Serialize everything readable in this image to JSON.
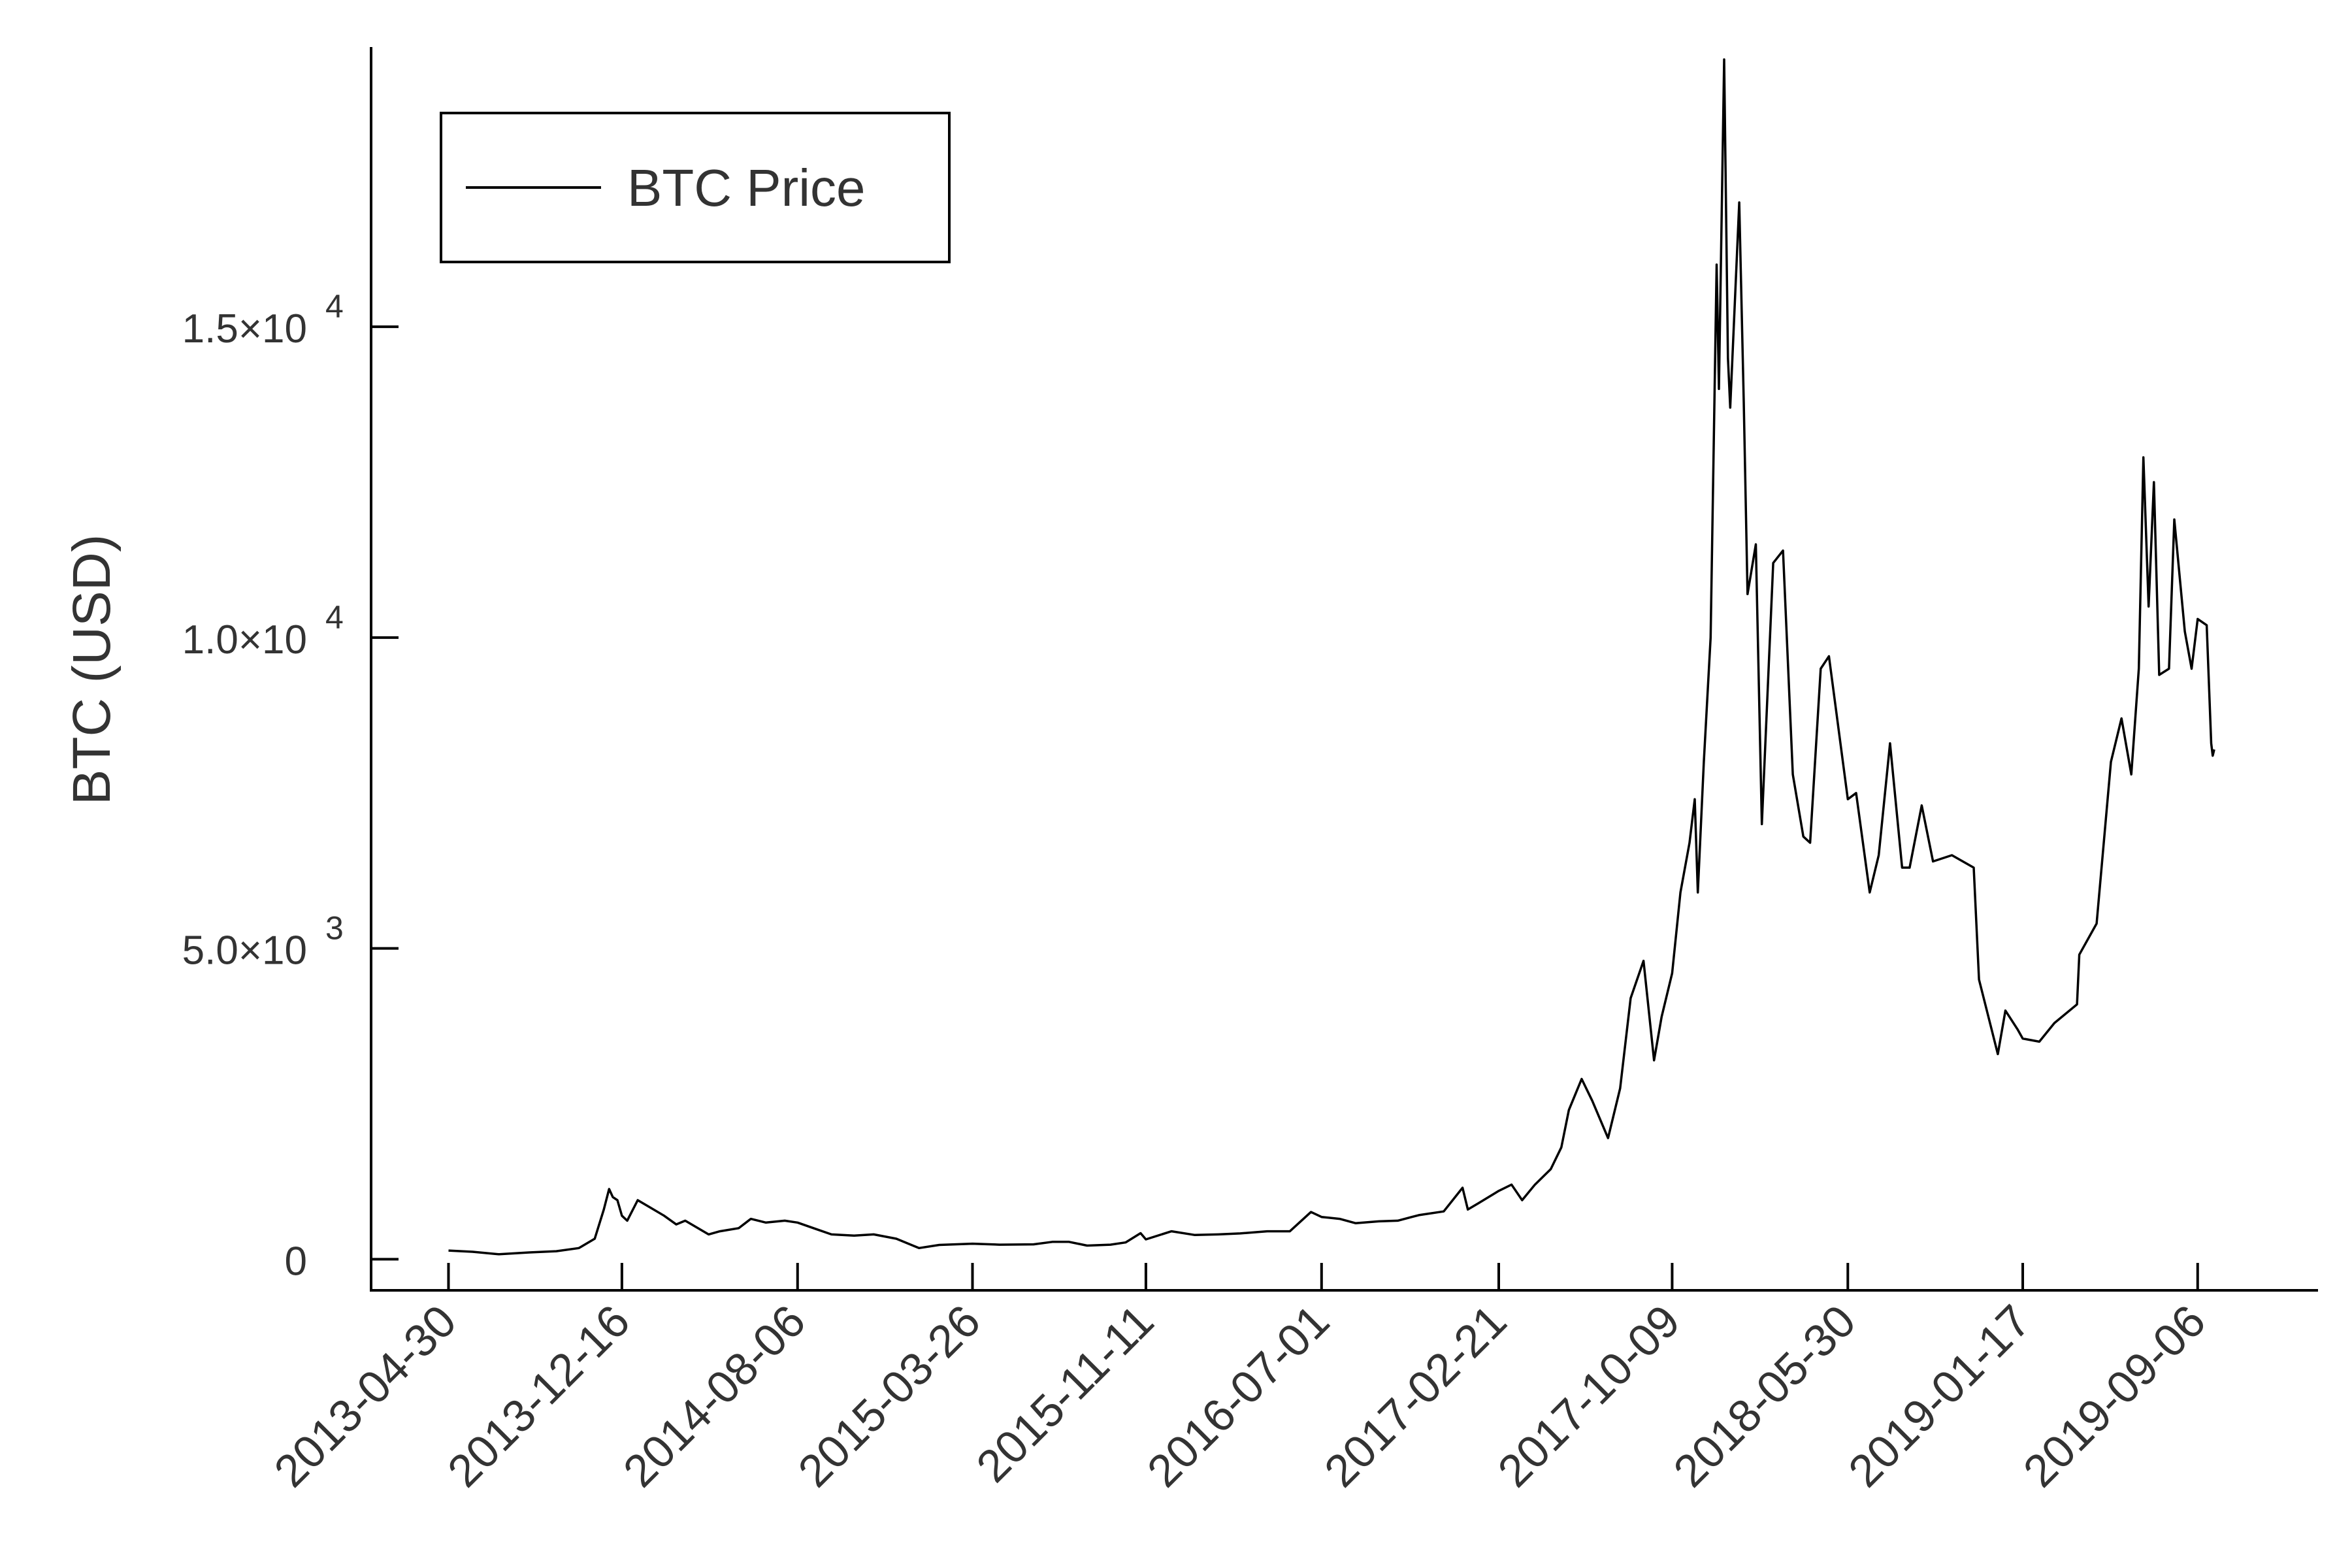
{
  "chart_data": {
    "type": "line",
    "ylabel": "BTC (USD)",
    "xlabel": "",
    "title": "",
    "grid": false,
    "legend_position": "top-left",
    "xlim": [
      "2013-04-01",
      "2019-11-18"
    ],
    "ylim": [
      -500,
      19500
    ],
    "x_ticks": [
      "2013-04-30",
      "2013-12-16",
      "2014-08-06",
      "2015-03-26",
      "2015-11-11",
      "2016-07-01",
      "2017-02-21",
      "2017-10-09",
      "2018-05-30",
      "2019-01-17",
      "2019-09-06"
    ],
    "y_ticks": [
      {
        "value": 0,
        "mantissa": "0",
        "exponent": ""
      },
      {
        "value": 5000,
        "mantissa": "5.0×10",
        "exponent": "3"
      },
      {
        "value": 10000,
        "mantissa": "1.0×10",
        "exponent": "4"
      },
      {
        "value": 15000,
        "mantissa": "1.5×10",
        "exponent": "4"
      }
    ],
    "series": [
      {
        "name": "BTC Price",
        "color": "#000000",
        "points": [
          [
            "2013-04-30",
            140
          ],
          [
            "2013-06-01",
            120
          ],
          [
            "2013-07-06",
            80
          ],
          [
            "2013-08-15",
            110
          ],
          [
            "2013-09-20",
            130
          ],
          [
            "2013-10-20",
            180
          ],
          [
            "2013-11-10",
            330
          ],
          [
            "2013-11-22",
            800
          ],
          [
            "2013-11-29",
            1130
          ],
          [
            "2013-12-04",
            1000
          ],
          [
            "2013-12-10",
            950
          ],
          [
            "2013-12-16",
            700
          ],
          [
            "2013-12-23",
            620
          ],
          [
            "2014-01-06",
            950
          ],
          [
            "2014-01-20",
            850
          ],
          [
            "2014-02-10",
            700
          ],
          [
            "2014-02-26",
            560
          ],
          [
            "2014-03-10",
            620
          ],
          [
            "2014-04-10",
            400
          ],
          [
            "2014-04-25",
            450
          ],
          [
            "2014-05-20",
            500
          ],
          [
            "2014-06-05",
            650
          ],
          [
            "2014-06-25",
            590
          ],
          [
            "2014-07-20",
            620
          ],
          [
            "2014-08-06",
            590
          ],
          [
            "2014-09-01",
            480
          ],
          [
            "2014-09-20",
            400
          ],
          [
            "2014-10-20",
            380
          ],
          [
            "2014-11-15",
            400
          ],
          [
            "2014-12-15",
            330
          ],
          [
            "2015-01-14",
            180
          ],
          [
            "2015-02-10",
            230
          ],
          [
            "2015-03-26",
            250
          ],
          [
            "2015-05-01",
            235
          ],
          [
            "2015-06-15",
            240
          ],
          [
            "2015-07-10",
            280
          ],
          [
            "2015-08-01",
            280
          ],
          [
            "2015-08-25",
            220
          ],
          [
            "2015-09-25",
            235
          ],
          [
            "2015-10-15",
            270
          ],
          [
            "2015-11-04",
            420
          ],
          [
            "2015-11-11",
            320
          ],
          [
            "2015-12-15",
            450
          ],
          [
            "2016-01-15",
            390
          ],
          [
            "2016-02-15",
            400
          ],
          [
            "2016-03-15",
            415
          ],
          [
            "2016-04-20",
            450
          ],
          [
            "2016-05-20",
            450
          ],
          [
            "2016-06-17",
            760
          ],
          [
            "2016-07-01",
            680
          ],
          [
            "2016-07-25",
            650
          ],
          [
            "2016-08-15",
            580
          ],
          [
            "2016-09-15",
            610
          ],
          [
            "2016-10-10",
            620
          ],
          [
            "2016-11-07",
            710
          ],
          [
            "2016-12-10",
            770
          ],
          [
            "2017-01-04",
            1150
          ],
          [
            "2017-01-11",
            800
          ],
          [
            "2017-01-25",
            900
          ],
          [
            "2017-02-21",
            1100
          ],
          [
            "2017-03-10",
            1200
          ],
          [
            "2017-03-24",
            950
          ],
          [
            "2017-04-10",
            1200
          ],
          [
            "2017-05-01",
            1450
          ],
          [
            "2017-05-15",
            1800
          ],
          [
            "2017-05-25",
            2400
          ],
          [
            "2017-06-11",
            2900
          ],
          [
            "2017-06-25",
            2550
          ],
          [
            "2017-07-16",
            1950
          ],
          [
            "2017-08-01",
            2750
          ],
          [
            "2017-08-15",
            4200
          ],
          [
            "2017-09-01",
            4800
          ],
          [
            "2017-09-15",
            3200
          ],
          [
            "2017-09-25",
            3900
          ],
          [
            "2017-10-09",
            4600
          ],
          [
            "2017-10-20",
            5900
          ],
          [
            "2017-11-01",
            6700
          ],
          [
            "2017-11-08",
            7400
          ],
          [
            "2017-11-12",
            5900
          ],
          [
            "2017-11-20",
            8000
          ],
          [
            "2017-11-29",
            10000
          ],
          [
            "2017-12-07",
            16000
          ],
          [
            "2017-12-10",
            14000
          ],
          [
            "2017-12-17",
            19300
          ],
          [
            "2017-12-22",
            14500
          ],
          [
            "2017-12-25",
            13700
          ],
          [
            "2018-01-06",
            17000
          ],
          [
            "2018-01-12",
            13800
          ],
          [
            "2018-01-17",
            10700
          ],
          [
            "2018-01-28",
            11500
          ],
          [
            "2018-02-05",
            7000
          ],
          [
            "2018-02-20",
            11200
          ],
          [
            "2018-03-05",
            11400
          ],
          [
            "2018-03-18",
            7800
          ],
          [
            "2018-04-01",
            6800
          ],
          [
            "2018-04-10",
            6700
          ],
          [
            "2018-04-24",
            9500
          ],
          [
            "2018-05-05",
            9700
          ],
          [
            "2018-05-30",
            7400
          ],
          [
            "2018-06-10",
            7500
          ],
          [
            "2018-06-28",
            5900
          ],
          [
            "2018-07-10",
            6500
          ],
          [
            "2018-07-25",
            8300
          ],
          [
            "2018-08-10",
            6300
          ],
          [
            "2018-08-20",
            6300
          ],
          [
            "2018-09-05",
            7300
          ],
          [
            "2018-09-20",
            6400
          ],
          [
            "2018-10-15",
            6500
          ],
          [
            "2018-11-13",
            6300
          ],
          [
            "2018-11-20",
            4500
          ],
          [
            "2018-12-15",
            3300
          ],
          [
            "2018-12-25",
            4000
          ],
          [
            "2019-01-10",
            3700
          ],
          [
            "2019-01-17",
            3550
          ],
          [
            "2019-02-08",
            3500
          ],
          [
            "2019-02-28",
            3800
          ],
          [
            "2019-03-30",
            4100
          ],
          [
            "2019-04-02",
            4900
          ],
          [
            "2019-04-25",
            5400
          ],
          [
            "2019-05-14",
            8000
          ],
          [
            "2019-05-28",
            8700
          ],
          [
            "2019-06-10",
            7800
          ],
          [
            "2019-06-20",
            9500
          ],
          [
            "2019-06-26",
            12900
          ],
          [
            "2019-07-03",
            10500
          ],
          [
            "2019-07-10",
            12500
          ],
          [
            "2019-07-17",
            9400
          ],
          [
            "2019-07-30",
            9500
          ],
          [
            "2019-08-06",
            11900
          ],
          [
            "2019-08-20",
            10100
          ],
          [
            "2019-08-29",
            9500
          ],
          [
            "2019-09-06",
            10300
          ],
          [
            "2019-09-18",
            10200
          ],
          [
            "2019-09-24",
            8300
          ],
          [
            "2019-09-26",
            8100
          ],
          [
            "2019-09-28",
            8200
          ]
        ]
      }
    ]
  }
}
